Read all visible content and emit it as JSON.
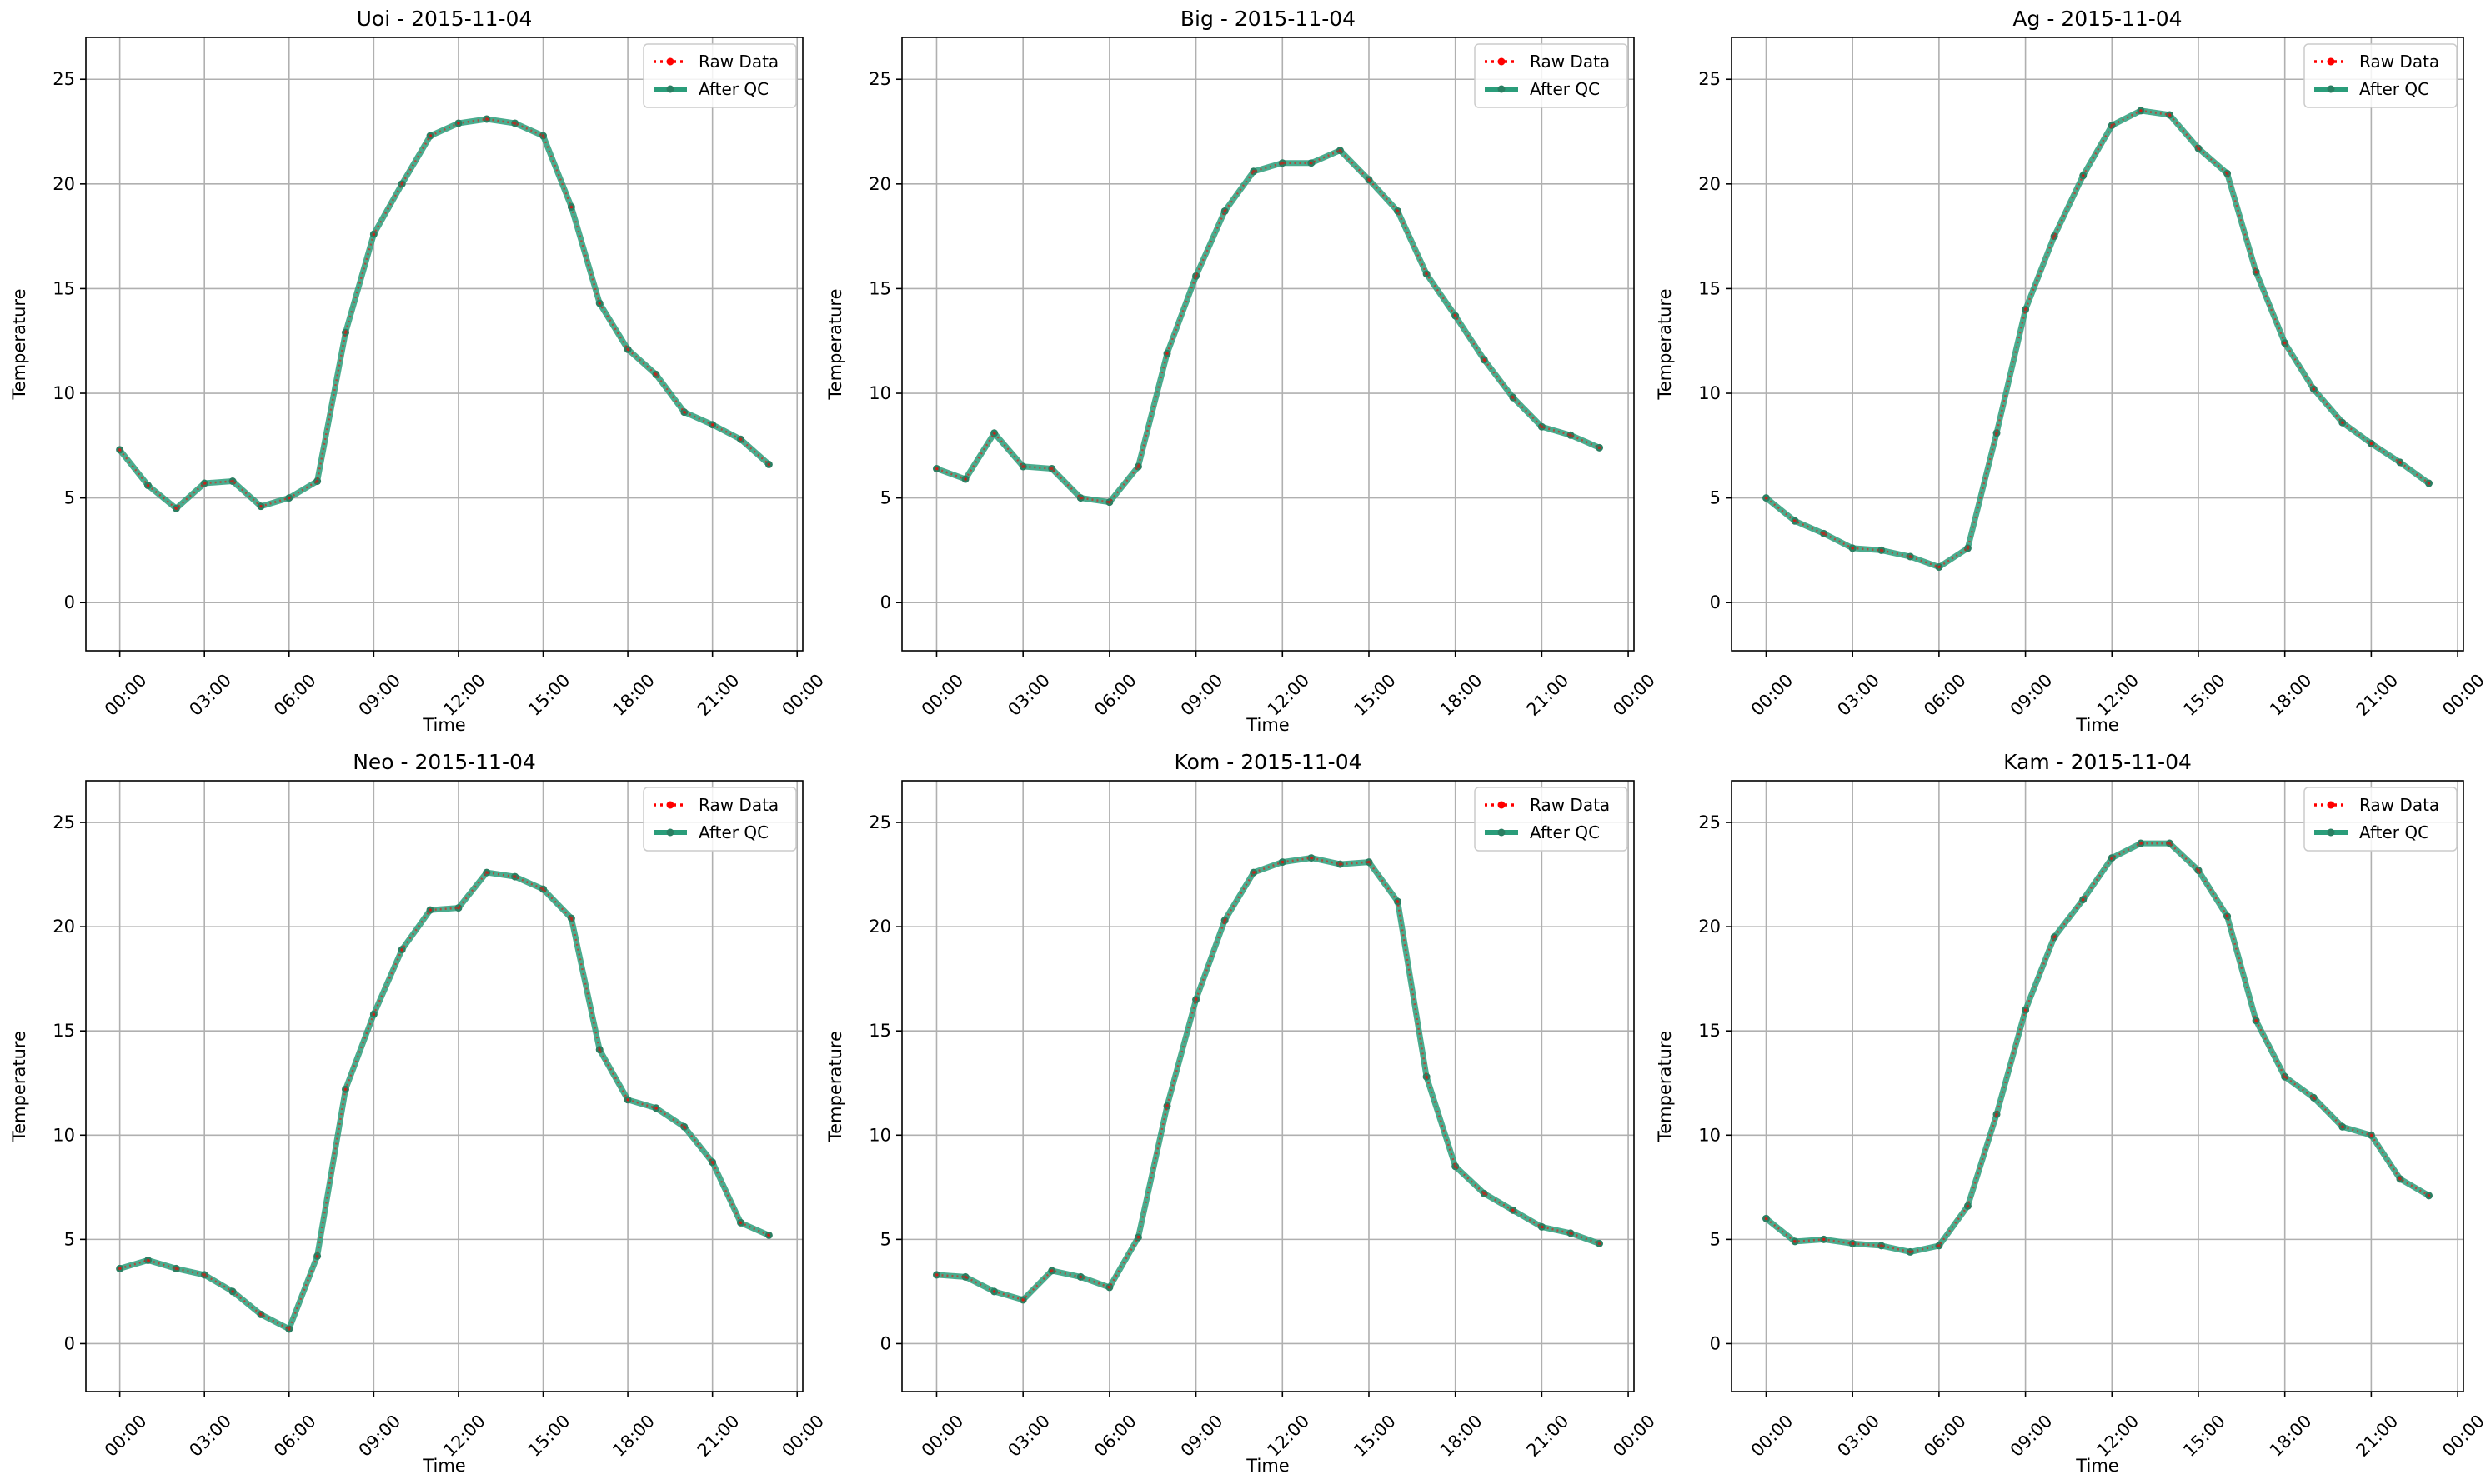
{
  "colors": {
    "raw": "#ff0000",
    "qc": "#2a9d7a",
    "qc_marker": "#2a7f62",
    "grid": "#b0b0b0",
    "axes": "#000000"
  },
  "chart_data": [
    {
      "type": "line",
      "title": "Uoi - 2015-11-04",
      "xlabel": "Time",
      "ylabel": "Temperature",
      "xticks": [
        "00:00",
        "03:00",
        "06:00",
        "09:00",
        "12:00",
        "15:00",
        "18:00",
        "21:00",
        "00:00"
      ],
      "yticks": [
        "0",
        "5",
        "10",
        "15",
        "20",
        "25"
      ],
      "xlim_hours": [
        -1.2,
        24.2
      ],
      "ylim": [
        -2.3,
        27.0
      ],
      "grid": true,
      "legend_position": "top-right",
      "x_hours": [
        0,
        1,
        2,
        3,
        4,
        5,
        6,
        7,
        8,
        9,
        10,
        11,
        12,
        13,
        14,
        15,
        16,
        17,
        18,
        19,
        20,
        21,
        22,
        23
      ],
      "series": [
        {
          "name": "Raw Data",
          "style": "dotted-red",
          "values": [
            7.3,
            5.6,
            4.5,
            5.7,
            5.8,
            4.6,
            5.0,
            5.8,
            12.9,
            17.6,
            20.0,
            22.3,
            22.9,
            23.1,
            22.9,
            22.3,
            18.9,
            14.3,
            12.1,
            10.9,
            9.1,
            8.5,
            7.8,
            6.6
          ]
        },
        {
          "name": "After QC",
          "style": "solid-green",
          "values": [
            7.3,
            5.6,
            4.5,
            5.7,
            5.8,
            4.6,
            5.0,
            5.8,
            12.9,
            17.6,
            20.0,
            22.3,
            22.9,
            23.1,
            22.9,
            22.3,
            18.9,
            14.3,
            12.1,
            10.9,
            9.1,
            8.5,
            7.8,
            6.6
          ]
        }
      ]
    },
    {
      "type": "line",
      "title": "Big - 2015-11-04",
      "xlabel": "Time",
      "ylabel": "Temperature",
      "xticks": [
        "00:00",
        "03:00",
        "06:00",
        "09:00",
        "12:00",
        "15:00",
        "18:00",
        "21:00",
        "00:00"
      ],
      "yticks": [
        "0",
        "5",
        "10",
        "15",
        "20",
        "25"
      ],
      "xlim_hours": [
        -1.2,
        24.2
      ],
      "ylim": [
        -2.3,
        27.0
      ],
      "grid": true,
      "legend_position": "top-right",
      "x_hours": [
        0,
        1,
        2,
        3,
        4,
        5,
        6,
        7,
        8,
        9,
        10,
        11,
        12,
        13,
        14,
        15,
        16,
        17,
        18,
        19,
        20,
        21,
        22,
        23
      ],
      "series": [
        {
          "name": "Raw Data",
          "style": "dotted-red",
          "values": [
            6.4,
            5.9,
            8.1,
            6.5,
            6.4,
            5.0,
            4.8,
            6.5,
            11.9,
            15.6,
            18.7,
            20.6,
            21.0,
            21.0,
            21.6,
            20.2,
            18.7,
            15.7,
            13.7,
            11.6,
            9.8,
            8.4,
            8.0,
            7.4
          ]
        },
        {
          "name": "After QC",
          "style": "solid-green",
          "values": [
            6.4,
            5.9,
            8.1,
            6.5,
            6.4,
            5.0,
            4.8,
            6.5,
            11.9,
            15.6,
            18.7,
            20.6,
            21.0,
            21.0,
            21.6,
            20.2,
            18.7,
            15.7,
            13.7,
            11.6,
            9.8,
            8.4,
            8.0,
            7.4
          ]
        }
      ]
    },
    {
      "type": "line",
      "title": "Ag - 2015-11-04",
      "xlabel": "Time",
      "ylabel": "Temperature",
      "xticks": [
        "00:00",
        "03:00",
        "06:00",
        "09:00",
        "12:00",
        "15:00",
        "18:00",
        "21:00",
        "00:00"
      ],
      "yticks": [
        "0",
        "5",
        "10",
        "15",
        "20",
        "25"
      ],
      "xlim_hours": [
        -1.2,
        24.2
      ],
      "ylim": [
        -2.3,
        27.0
      ],
      "grid": true,
      "legend_position": "top-right",
      "x_hours": [
        0,
        1,
        2,
        3,
        4,
        5,
        6,
        7,
        8,
        9,
        10,
        11,
        12,
        13,
        14,
        15,
        16,
        17,
        18,
        19,
        20,
        21,
        22,
        23
      ],
      "series": [
        {
          "name": "Raw Data",
          "style": "dotted-red",
          "values": [
            5.0,
            3.9,
            3.3,
            2.6,
            2.5,
            2.2,
            1.7,
            2.6,
            8.1,
            14.0,
            17.5,
            20.4,
            22.8,
            23.5,
            23.3,
            21.7,
            20.5,
            15.8,
            12.4,
            10.2,
            8.6,
            7.6,
            6.7,
            5.7
          ]
        },
        {
          "name": "After QC",
          "style": "solid-green",
          "values": [
            5.0,
            3.9,
            3.3,
            2.6,
            2.5,
            2.2,
            1.7,
            2.6,
            8.1,
            14.0,
            17.5,
            20.4,
            22.8,
            23.5,
            23.3,
            21.7,
            20.5,
            15.8,
            12.4,
            10.2,
            8.6,
            7.6,
            6.7,
            5.7
          ]
        }
      ]
    },
    {
      "type": "line",
      "title": "Neo - 2015-11-04",
      "xlabel": "Time",
      "ylabel": "Temperature",
      "xticks": [
        "00:00",
        "03:00",
        "06:00",
        "09:00",
        "12:00",
        "15:00",
        "18:00",
        "21:00",
        "00:00"
      ],
      "yticks": [
        "0",
        "5",
        "10",
        "15",
        "20",
        "25"
      ],
      "xlim_hours": [
        -1.2,
        24.2
      ],
      "ylim": [
        -2.3,
        27.0
      ],
      "grid": true,
      "legend_position": "top-right",
      "x_hours": [
        0,
        1,
        2,
        3,
        4,
        5,
        6,
        7,
        8,
        9,
        10,
        11,
        12,
        13,
        14,
        15,
        16,
        17,
        18,
        19,
        20,
        21,
        22,
        23
      ],
      "series": [
        {
          "name": "Raw Data",
          "style": "dotted-red",
          "values": [
            3.6,
            4.0,
            3.6,
            3.3,
            2.5,
            1.4,
            0.7,
            4.2,
            12.2,
            15.8,
            18.9,
            20.8,
            20.9,
            22.6,
            22.4,
            21.8,
            20.4,
            14.1,
            11.7,
            11.3,
            10.4,
            8.7,
            5.8,
            5.2
          ]
        },
        {
          "name": "After QC",
          "style": "solid-green",
          "values": [
            3.6,
            4.0,
            3.6,
            3.3,
            2.5,
            1.4,
            0.7,
            4.2,
            12.2,
            15.8,
            18.9,
            20.8,
            20.9,
            22.6,
            22.4,
            21.8,
            20.4,
            14.1,
            11.7,
            11.3,
            10.4,
            8.7,
            5.8,
            5.2
          ]
        }
      ]
    },
    {
      "type": "line",
      "title": "Kom - 2015-11-04",
      "xlabel": "Time",
      "ylabel": "Temperature",
      "xticks": [
        "00:00",
        "03:00",
        "06:00",
        "09:00",
        "12:00",
        "15:00",
        "18:00",
        "21:00",
        "00:00"
      ],
      "yticks": [
        "0",
        "5",
        "10",
        "15",
        "20",
        "25"
      ],
      "xlim_hours": [
        -1.2,
        24.2
      ],
      "ylim": [
        -2.3,
        27.0
      ],
      "grid": true,
      "legend_position": "top-right",
      "x_hours": [
        0,
        1,
        2,
        3,
        4,
        5,
        6,
        7,
        8,
        9,
        10,
        11,
        12,
        13,
        14,
        15,
        16,
        17,
        18,
        19,
        20,
        21,
        22,
        23
      ],
      "series": [
        {
          "name": "Raw Data",
          "style": "dotted-red",
          "values": [
            3.3,
            3.2,
            2.5,
            2.1,
            3.5,
            3.2,
            2.7,
            5.1,
            11.4,
            16.5,
            20.3,
            22.6,
            23.1,
            23.3,
            23.0,
            23.1,
            21.2,
            12.8,
            8.5,
            7.2,
            6.4,
            5.6,
            5.3,
            4.8
          ]
        },
        {
          "name": "After QC",
          "style": "solid-green",
          "values": [
            3.3,
            3.2,
            2.5,
            2.1,
            3.5,
            3.2,
            2.7,
            5.1,
            11.4,
            16.5,
            20.3,
            22.6,
            23.1,
            23.3,
            23.0,
            23.1,
            21.2,
            12.8,
            8.5,
            7.2,
            6.4,
            5.6,
            5.3,
            4.8
          ]
        }
      ]
    },
    {
      "type": "line",
      "title": "Kam - 2015-11-04",
      "xlabel": "Time",
      "ylabel": "Temperature",
      "xticks": [
        "00:00",
        "03:00",
        "06:00",
        "09:00",
        "12:00",
        "15:00",
        "18:00",
        "21:00",
        "00:00"
      ],
      "yticks": [
        "0",
        "5",
        "10",
        "15",
        "20",
        "25"
      ],
      "xlim_hours": [
        -1.2,
        24.2
      ],
      "ylim": [
        -2.3,
        27.0
      ],
      "grid": true,
      "legend_position": "top-right",
      "x_hours": [
        0,
        1,
        2,
        3,
        4,
        5,
        6,
        7,
        8,
        9,
        10,
        11,
        12,
        13,
        14,
        15,
        16,
        17,
        18,
        19,
        20,
        21,
        22,
        23
      ],
      "series": [
        {
          "name": "Raw Data",
          "style": "dotted-red",
          "values": [
            6.0,
            4.9,
            5.0,
            4.8,
            4.7,
            4.4,
            4.7,
            6.6,
            11.0,
            16.0,
            19.5,
            21.3,
            23.3,
            24.0,
            24.0,
            22.7,
            20.5,
            15.5,
            12.8,
            11.8,
            10.4,
            10.0,
            7.9,
            7.1
          ]
        },
        {
          "name": "After QC",
          "style": "solid-green",
          "values": [
            6.0,
            4.9,
            5.0,
            4.8,
            4.7,
            4.4,
            4.7,
            6.6,
            11.0,
            16.0,
            19.5,
            21.3,
            23.3,
            24.0,
            24.0,
            22.7,
            20.5,
            15.5,
            12.8,
            11.8,
            10.4,
            10.0,
            7.9,
            7.1
          ]
        }
      ]
    }
  ]
}
